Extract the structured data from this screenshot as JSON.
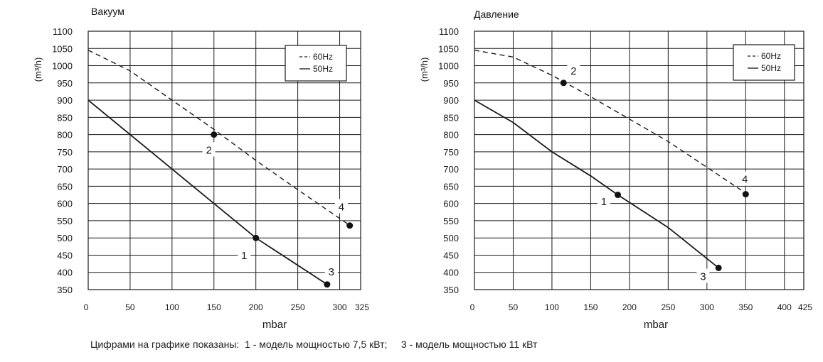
{
  "chart_data": [
    {
      "type": "line",
      "title": "Вакуум",
      "xlabel": "mbar",
      "ylabel": "(m³/h)",
      "xlim": [
        0,
        325
      ],
      "ylim": [
        350,
        1100
      ],
      "x_ticks": [
        0,
        50,
        100,
        150,
        200,
        250,
        300,
        325
      ],
      "x_tick_labels": [
        "0",
        "50",
        "100",
        "150",
        "200",
        "250",
        "300",
        "325"
      ],
      "y_ticks": [
        350,
        400,
        450,
        500,
        550,
        600,
        650,
        700,
        750,
        800,
        850,
        900,
        950,
        1000,
        1050,
        1100
      ],
      "y_tick_labels": [
        "350",
        "400",
        "450",
        "500",
        "550",
        "600",
        "650",
        "700",
        "750",
        "800",
        "850",
        "900",
        "950",
        "1000",
        "1050",
        "1100"
      ],
      "legend": [
        {
          "label": "60Hz",
          "style": "dashed"
        },
        {
          "label": "50Hz",
          "style": "solid"
        }
      ],
      "series": [
        {
          "name": "50Hz",
          "style": "solid",
          "points": [
            [
              0,
              900
            ],
            [
              50,
              800
            ],
            [
              100,
              700
            ],
            [
              150,
              600
            ],
            [
              200,
              500
            ],
            [
              285,
              365
            ]
          ]
        },
        {
          "name": "60Hz",
          "style": "dashed",
          "points": [
            [
              0,
              1045
            ],
            [
              50,
              985
            ],
            [
              100,
              900
            ],
            [
              150,
              815
            ],
            [
              200,
              725
            ],
            [
              250,
              640
            ],
            [
              310,
              540
            ]
          ]
        }
      ],
      "markers": [
        {
          "x": 150,
          "y": 800
        },
        {
          "x": 200,
          "y": 500
        },
        {
          "x": 285,
          "y": 365
        },
        {
          "x": 312,
          "y": 536
        }
      ],
      "annotations": [
        {
          "text": "1",
          "x": 186,
          "y": 449
        },
        {
          "text": "2",
          "x": 144,
          "y": 755
        },
        {
          "text": "3",
          "x": 290,
          "y": 402
        },
        {
          "text": "4",
          "x": 302,
          "y": 590
        }
      ]
    },
    {
      "type": "line",
      "title": "Давление",
      "xlabel": "mbar",
      "ylabel": "(m³/h)",
      "xlim": [
        0,
        425
      ],
      "ylim": [
        350,
        1100
      ],
      "x_ticks": [
        0,
        50,
        100,
        150,
        200,
        250,
        300,
        350,
        400,
        425
      ],
      "x_tick_labels": [
        "0",
        "50",
        "100",
        "150",
        "200",
        "250",
        "300",
        "350",
        "400",
        "425"
      ],
      "y_ticks": [
        350,
        400,
        450,
        500,
        550,
        600,
        650,
        700,
        750,
        800,
        850,
        900,
        950,
        1000,
        1050,
        1100
      ],
      "y_tick_labels": [
        "350",
        "400",
        "450",
        "500",
        "550",
        "600",
        "650",
        "700",
        "750",
        "800",
        "850",
        "900",
        "950",
        "1000",
        "1050",
        "1100"
      ],
      "legend": [
        {
          "label": "60Hz",
          "style": "dashed"
        },
        {
          "label": "50Hz",
          "style": "solid"
        }
      ],
      "series": [
        {
          "name": "50Hz",
          "style": "solid",
          "points": [
            [
              0,
              900
            ],
            [
              50,
              835
            ],
            [
              100,
              750
            ],
            [
              150,
              680
            ],
            [
              185,
              625
            ],
            [
              250,
              530
            ],
            [
              315,
              413
            ]
          ]
        },
        {
          "name": "60Hz",
          "style": "dashed",
          "points": [
            [
              0,
              1045
            ],
            [
              50,
              1025
            ],
            [
              100,
              972
            ],
            [
              150,
              910
            ],
            [
              200,
              845
            ],
            [
              250,
              780
            ],
            [
              300,
              705
            ],
            [
              350,
              630
            ]
          ]
        }
      ],
      "markers": [
        {
          "x": 115,
          "y": 950
        },
        {
          "x": 185,
          "y": 625
        },
        {
          "x": 315,
          "y": 413
        },
        {
          "x": 350,
          "y": 627
        }
      ],
      "annotations": [
        {
          "text": "1",
          "x": 167,
          "y": 605
        },
        {
          "text": "2",
          "x": 128,
          "y": 985
        },
        {
          "text": "3",
          "x": 295,
          "y": 388
        },
        {
          "text": "4",
          "x": 349,
          "y": 670
        }
      ]
    }
  ],
  "footnote": "Цифрами на графике показаны:  1 - модель мощностью 7,5 кВт;     3 - модель мощностью 11 кВт"
}
